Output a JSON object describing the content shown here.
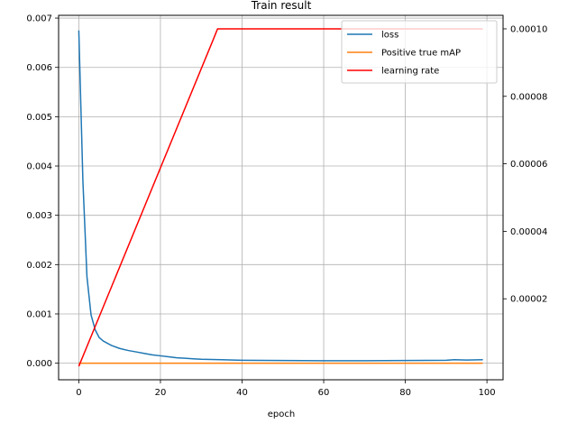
{
  "chart_data": {
    "type": "line",
    "title": "Train result",
    "xlabel": "epoch",
    "ylabel": "",
    "xlim": [
      -4.95,
      103.95
    ],
    "xticks": [
      0,
      20,
      40,
      60,
      80,
      100
    ],
    "grid": true,
    "legend_position": "top-right",
    "left_axis": {
      "ylim": [
        -0.000336,
        0.007056
      ],
      "ticks": [
        0.0,
        0.001,
        0.002,
        0.003,
        0.004,
        0.005,
        0.006,
        0.007
      ],
      "tick_labels": [
        "0.000",
        "0.001",
        "0.002",
        "0.003",
        "0.004",
        "0.005",
        "0.006",
        "0.007"
      ]
    },
    "right_axis": {
      "ylim": [
        -4e-06,
        0.000104
      ],
      "ticks": [
        2e-05,
        4e-05,
        6e-05,
        8e-05,
        0.0001
      ],
      "tick_labels": [
        "0.00002",
        "0.00004",
        "0.00006",
        "0.00008",
        "0.00010"
      ]
    },
    "series": [
      {
        "name": "loss",
        "axis": "left",
        "color": "#1f77b4",
        "x": [
          0,
          1,
          2,
          3,
          4,
          5,
          6,
          8,
          10,
          12,
          14,
          16,
          18,
          20,
          22,
          24,
          26,
          28,
          30,
          35,
          40,
          50,
          60,
          70,
          80,
          90,
          92,
          95,
          99
        ],
        "y": [
          0.00675,
          0.0037,
          0.00175,
          0.00098,
          0.00068,
          0.00052,
          0.00045,
          0.00036,
          0.0003,
          0.00026,
          0.00023,
          0.0002,
          0.00017,
          0.00015,
          0.00013,
          0.00011,
          0.0001,
          9e-05,
          8e-05,
          7e-05,
          6e-05,
          5.5e-05,
          5e-05,
          5e-05,
          5.5e-05,
          6e-05,
          7e-05,
          6.5e-05,
          7e-05
        ]
      },
      {
        "name": "Positive true mAP",
        "axis": "left",
        "color": "#ff7f0e",
        "x": [
          0,
          99
        ],
        "y": [
          0.0,
          0.0
        ]
      },
      {
        "name": "learning rate",
        "axis": "right",
        "color": "#ff0000",
        "x": [
          0,
          33,
          34,
          99
        ],
        "y": [
          0.0,
          9.7e-05,
          0.0001,
          0.0001
        ]
      }
    ]
  }
}
